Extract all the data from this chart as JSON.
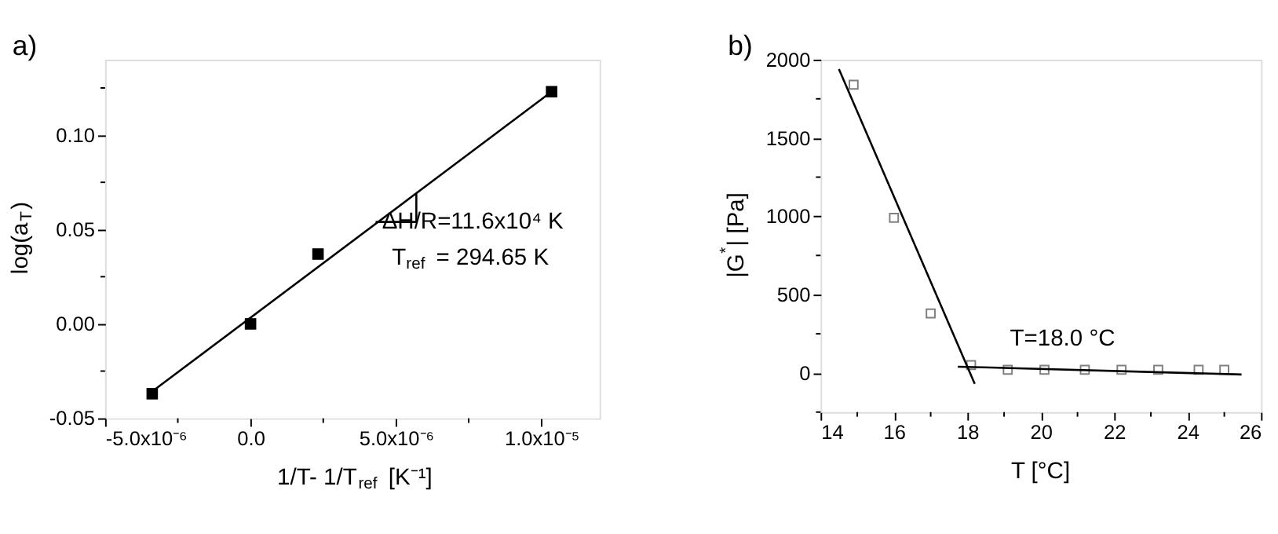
{
  "chart_data": [
    {
      "type": "scatter",
      "title": "a)",
      "xlabel": "1/T- 1/T$_{ref}$ [K⁻¹]",
      "ylabel": "log(a$_{T}$)",
      "annotations": [
        "ΔH/R=11.6x10⁴ K",
        "T$_{ref}$ = 294.65 K"
      ],
      "xlim": [
        -5e-06,
        1.2e-05
      ],
      "ylim": [
        -0.05,
        0.14
      ],
      "xticks": [
        {
          "value": -5e-06,
          "label": "-5.0x10⁻⁶"
        },
        {
          "value": -2.5e-06,
          "label": null
        },
        {
          "value": 0,
          "label": "0.0"
        },
        {
          "value": 2.5e-06,
          "label": null
        },
        {
          "value": 5e-06,
          "label": "5.0x10⁻⁶"
        },
        {
          "value": 7.5e-06,
          "label": null
        },
        {
          "value": 1e-05,
          "label": "1.0x10⁻⁵"
        }
      ],
      "yticks": [
        {
          "value": -0.05,
          "label": "-0.05"
        },
        {
          "value": -0.025,
          "label": null
        },
        {
          "value": 0,
          "label": "0.00"
        },
        {
          "value": 0.025,
          "label": null
        },
        {
          "value": 0.05,
          "label": "0.05"
        },
        {
          "value": 0.075,
          "label": null
        },
        {
          "value": 0.1,
          "label": "0.10"
        },
        {
          "value": 0.125,
          "label": null
        }
      ],
      "grid": false,
      "series": [
        {
          "color": "#000000",
          "marker": "square",
          "x": [
            -3.38e-06,
            0,
            2.32e-06,
            1.035e-05
          ],
          "values": [
            -0.037,
            0,
            0.037,
            0.123
          ]
        },
        {
          "type": "line",
          "color": "#000000",
          "x": [
            -3.4e-06,
            1.035e-05
          ],
          "values": [
            -0.036,
            0.123
          ]
        },
        {
          "type": "line",
          "color": "#000000",
          "x": [
            4.3e-06,
            5.7e-06,
            5.7e-06
          ],
          "values": [
            0.054,
            0.054,
            0.069
          ]
        }
      ]
    },
    {
      "type": "scatter",
      "title": "b)",
      "xlabel": "T [°C]",
      "ylabel": "|G$^{*}$| [Pa]",
      "annotations": [
        "T=18.0 °C"
      ],
      "xlim": [
        14,
        26
      ],
      "ylim": [
        -250,
        2000
      ],
      "xticks": [
        14,
        {
          "value": 15,
          "label": null
        },
        16,
        {
          "value": 17,
          "label": null
        },
        18,
        {
          "value": 19,
          "label": null
        },
        20,
        {
          "value": 21,
          "label": null
        },
        22,
        {
          "value": 23,
          "label": null
        },
        24,
        {
          "value": 25,
          "label": null
        },
        26
      ],
      "yticks": [
        {
          "value": -250,
          "label": null
        },
        0,
        {
          "value": 250,
          "label": null
        },
        500,
        {
          "value": 750,
          "label": null
        },
        1000,
        {
          "value": 1250,
          "label": null
        },
        1500,
        {
          "value": 1750,
          "label": null
        },
        2000
      ],
      "grid": false,
      "series": [
        {
          "color": "#808080",
          "marker": "square",
          "x": [
            14.9,
            16.0,
            17.0,
            18.1,
            19.1,
            20.1,
            21.2,
            22.2,
            23.2,
            24.3,
            25.0
          ],
          "values": [
            1840,
            990,
            380,
            50,
            20,
            20,
            20,
            20,
            20,
            20,
            20
          ]
        },
        {
          "type": "line",
          "color": "#000000",
          "x": [
            14.5,
            18.2
          ],
          "values": [
            1940,
            -70
          ]
        },
        {
          "type": "line",
          "color": "#000000",
          "x": [
            17.74,
            25.47
          ],
          "values": [
            40,
            -10
          ]
        }
      ]
    }
  ]
}
